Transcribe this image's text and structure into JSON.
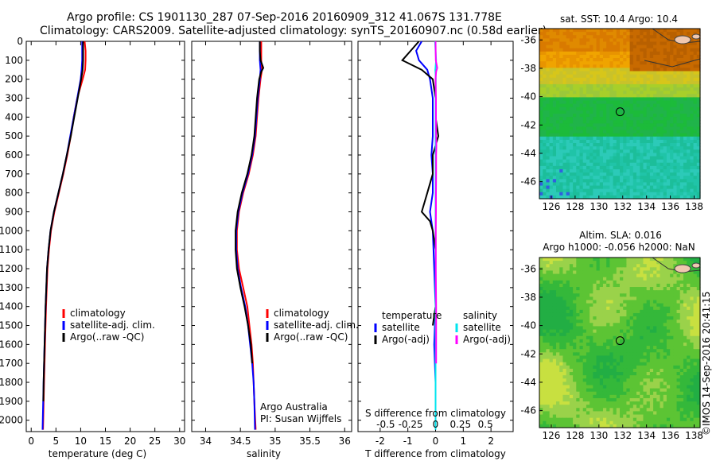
{
  "header": {
    "line1": "Argo profile: CS 1901130_287 07-Sep-2016 20160909_312 41.067S 131.778E",
    "line2": "Climatology: CARS2009. Satellite-adjusted climatology: synTS_20160907.nc (0.58d earlier)"
  },
  "credit": "©IMOS 14-Sep-2016 20:41:15",
  "colors": {
    "climatology": "#ff0000",
    "satellite": "#0000ff",
    "argo": "#000000",
    "sal_satellite": "#00e5ee",
    "sal_argo": "#ff00ff"
  },
  "chart_data": [
    {
      "id": "temperature",
      "type": "line",
      "xlabel": "temperature (deg C)",
      "ylabel": "",
      "xlim": [
        -1,
        31
      ],
      "ylim": [
        2060,
        0
      ],
      "xticks": [
        0,
        5,
        10,
        15,
        20,
        25,
        30
      ],
      "yticks": [
        0,
        100,
        200,
        300,
        400,
        500,
        600,
        700,
        800,
        900,
        1000,
        1100,
        1200,
        1300,
        1400,
        1500,
        1600,
        1700,
        1800,
        1900,
        2000
      ],
      "legend": {
        "position": "lower-right",
        "entries": [
          "climatology",
          "satellite-adj. clim.",
          "Argo(..raw -QC)"
        ]
      },
      "series": [
        {
          "name": "climatology",
          "color": "#ff0000",
          "y": [
            0,
            50,
            100,
            150,
            200,
            300,
            400,
            500,
            600,
            700,
            800,
            900,
            1000,
            1100,
            1200,
            1400,
            1600,
            1800,
            2050
          ],
          "x": [
            10.8,
            11.0,
            11.0,
            10.9,
            10.4,
            9.3,
            8.6,
            8.0,
            7.3,
            6.5,
            5.6,
            4.7,
            4.0,
            3.6,
            3.3,
            3.0,
            2.8,
            2.6,
            2.4
          ]
        },
        {
          "name": "satellite-adj. clim.",
          "color": "#0000ff",
          "y": [
            0,
            50,
            100,
            150,
            200,
            300,
            400,
            500,
            600,
            700,
            800,
            900,
            1000,
            1100,
            1200,
            1400,
            1600,
            1800,
            2050
          ],
          "x": [
            10.3,
            10.3,
            10.3,
            10.2,
            10.0,
            9.3,
            8.6,
            7.9,
            7.2,
            6.4,
            5.5,
            4.6,
            3.9,
            3.5,
            3.2,
            2.9,
            2.7,
            2.5,
            2.3
          ]
        },
        {
          "name": "Argo(..raw -QC)",
          "color": "#000000",
          "y": [
            0,
            50,
            100,
            150,
            200,
            300,
            400,
            500,
            600,
            700,
            800,
            900,
            1000,
            1100,
            1200,
            1400,
            1600,
            1800,
            1900
          ],
          "x": [
            10.5,
            10.5,
            10.5,
            10.4,
            10.1,
            9.4,
            8.7,
            8.0,
            7.2,
            6.4,
            5.5,
            4.6,
            3.9,
            3.5,
            3.2,
            2.9,
            2.7,
            2.5,
            2.45
          ]
        }
      ]
    },
    {
      "id": "salinity",
      "type": "line",
      "xlabel": "salinity",
      "ylabel": "",
      "xlim": [
        33.8,
        36.1
      ],
      "ylim": [
        2060,
        0
      ],
      "xticks": [
        34,
        34.5,
        35,
        35.5,
        36
      ],
      "legend": {
        "position": "lower-right",
        "entries": [
          "climatology",
          "satellite-adj. clim.",
          "Argo(..raw -QC)"
        ]
      },
      "annotation": {
        "line1": "Argo Australia",
        "line2": "PI: Susan Wijffels"
      },
      "series": [
        {
          "name": "climatology",
          "color": "#ff0000",
          "y": [
            0,
            100,
            150,
            200,
            300,
            400,
            500,
            600,
            700,
            800,
            900,
            1000,
            1100,
            1200,
            1300,
            1400,
            1500,
            1600,
            1700,
            1800,
            1900,
            2050
          ],
          "x": [
            34.8,
            34.8,
            34.81,
            34.79,
            34.76,
            34.74,
            34.72,
            34.68,
            34.62,
            34.54,
            34.48,
            34.45,
            34.45,
            34.48,
            34.54,
            34.6,
            34.63,
            34.66,
            34.68,
            34.69,
            34.7,
            34.72
          ]
        },
        {
          "name": "satellite-adj. clim.",
          "color": "#0000ff",
          "y": [
            0,
            100,
            150,
            200,
            300,
            400,
            500,
            600,
            700,
            800,
            900,
            1000,
            1100,
            1200,
            1300,
            1400,
            1500,
            1600,
            1700,
            1800,
            1900,
            2050
          ],
          "x": [
            34.78,
            34.78,
            34.79,
            34.78,
            34.75,
            34.73,
            34.71,
            34.67,
            34.61,
            34.53,
            34.47,
            34.44,
            34.44,
            34.46,
            34.51,
            34.57,
            34.61,
            34.64,
            34.67,
            34.69,
            34.7,
            34.71
          ]
        },
        {
          "name": "Argo(..raw -QC)",
          "color": "#000000",
          "y": [
            0,
            50,
            100,
            140,
            160,
            200,
            300,
            400,
            500,
            600,
            700,
            800,
            900,
            1000,
            1100,
            1200,
            1300,
            1400,
            1500,
            1600,
            1700
          ],
          "x": [
            34.78,
            34.78,
            34.79,
            34.83,
            34.8,
            34.77,
            34.74,
            34.72,
            34.7,
            34.66,
            34.6,
            34.52,
            34.46,
            34.43,
            34.43,
            34.45,
            34.5,
            34.56,
            34.61,
            34.65,
            34.67
          ]
        }
      ]
    },
    {
      "id": "difference",
      "type": "line",
      "xlabel": "T difference from climatology",
      "x2label": "S difference from climatology",
      "xlim": [
        -2.8,
        2.8
      ],
      "ylim": [
        2060,
        0
      ],
      "xticks": [
        -2,
        -1,
        0,
        1,
        2
      ],
      "x2ticks": [
        "-0.5",
        "-0.25",
        "0",
        "0.25",
        "0.5"
      ],
      "x2tick_values": [
        -0.5,
        -0.25,
        0,
        0.25,
        0.5
      ],
      "legend": {
        "position": "lower-right",
        "title_left": "temperature",
        "title_right": "salinity",
        "entries_left": [
          "satellite",
          "Argo(-adj)"
        ],
        "entries_right": [
          "satellite",
          "Argo(-adj)"
        ]
      },
      "series": [
        {
          "name": "T satellite",
          "color": "#0000ff",
          "y": [
            0,
            50,
            100,
            150,
            200,
            300,
            400,
            500,
            600,
            700,
            800,
            900,
            1000,
            1200,
            1400,
            1600,
            1800
          ],
          "x": [
            -0.5,
            -0.7,
            -0.6,
            -0.3,
            -0.2,
            -0.1,
            -0.1,
            -0.1,
            -0.15,
            -0.1,
            -0.1,
            -0.2,
            -0.1,
            -0.05,
            0.0,
            -0.05,
            0.0
          ]
        },
        {
          "name": "T Argo(-adj)",
          "color": "#000000",
          "y": [
            0,
            50,
            100,
            150,
            200,
            300,
            400,
            500,
            600,
            700,
            800,
            850,
            900,
            950,
            1000,
            1100,
            1200,
            1300,
            1400,
            1500
          ],
          "x": [
            -0.6,
            -0.9,
            -1.2,
            -0.5,
            -0.1,
            0.0,
            0.0,
            0.1,
            -0.1,
            -0.1,
            -0.3,
            -0.4,
            -0.5,
            -0.2,
            -0.1,
            0.0,
            0.0,
            0.0,
            0.0,
            -0.1
          ]
        },
        {
          "name": "S satellite",
          "color": "#00e5ee",
          "y": [
            0,
            100,
            150,
            200,
            300,
            400,
            600,
            800,
            1000,
            1200,
            1400,
            1600,
            1800,
            2050
          ],
          "x": [
            -0.02,
            0.02,
            -0.01,
            0.01,
            0.0,
            0.0,
            0.0,
            0.0,
            0.0,
            0.0,
            0.0,
            0.0,
            0.0,
            0.0
          ]
        },
        {
          "name": "S Argo(-adj)",
          "color": "#ff00ff",
          "y": [
            0,
            100,
            140,
            160,
            200,
            300,
            400,
            500,
            550,
            600,
            700,
            800,
            900,
            1000,
            1200,
            1400,
            1500,
            1600,
            1700
          ],
          "x": [
            0.0,
            0.01,
            0.06,
            0.02,
            0.0,
            0.015,
            0.015,
            0.02,
            0.03,
            0.02,
            0.02,
            0.015,
            0.015,
            0.01,
            0.01,
            0.02,
            0.02,
            0.02,
            0.02
          ]
        }
      ]
    },
    {
      "id": "sst-map",
      "type": "heatmap",
      "title": "sat. SST: 10.4  Argo: 10.4",
      "xticks": [
        126,
        128,
        130,
        132,
        134,
        136,
        138
      ],
      "yticks": [
        -36,
        -38,
        -40,
        -42,
        -44,
        -46
      ],
      "xlim": [
        125,
        138.5
      ],
      "ylim": [
        -47.2,
        -35.2
      ],
      "marker": {
        "lon": 131.778,
        "lat": -41.067
      }
    },
    {
      "id": "sla-map",
      "type": "heatmap",
      "title": "Altim. SLA: 0.016",
      "subtitle": "Argo h1000: -0.056 h2000: NaN",
      "xticks": [
        126,
        128,
        130,
        132,
        134,
        136,
        138
      ],
      "yticks": [
        -36,
        -38,
        -40,
        -42,
        -44,
        -46
      ],
      "xlim": [
        125,
        138.5
      ],
      "ylim": [
        -47.2,
        -35.2
      ],
      "marker": {
        "lon": 131.778,
        "lat": -41.067
      }
    }
  ]
}
